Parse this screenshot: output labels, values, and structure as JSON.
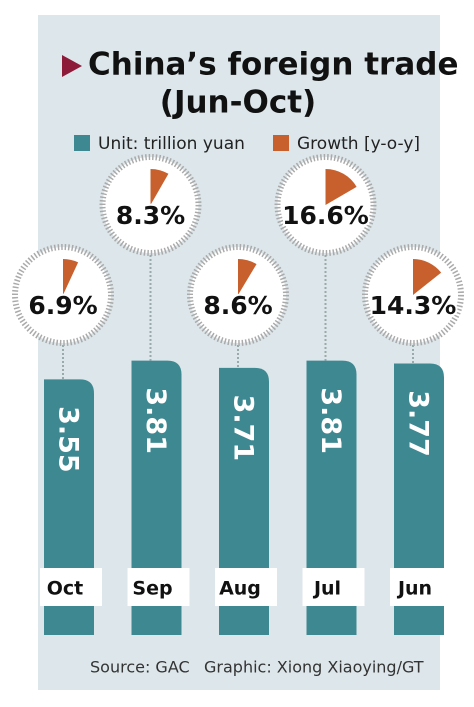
{
  "chart_data": {
    "type": "bar",
    "title": "China’s foreign trade",
    "subtitle": "(Jun-Oct)",
    "categories": [
      "Oct",
      "Sep",
      "Aug",
      "Jul",
      "Jun"
    ],
    "series": [
      {
        "name": "Unit: trillion yuan",
        "color": "#3e8891",
        "values": [
          3.55,
          3.81,
          3.71,
          3.81,
          3.77
        ]
      },
      {
        "name": "Growth [y-o-y]",
        "color": "#c8602d",
        "values": [
          6.9,
          8.3,
          8.6,
          16.6,
          14.3
        ],
        "value_labels": [
          "6.9%",
          "8.3%",
          "8.6%",
          "16.6%",
          "14.3%"
        ]
      }
    ],
    "source": "Source: GAC",
    "credit": "Graphic: Xiong Xiaoying/GT"
  }
}
